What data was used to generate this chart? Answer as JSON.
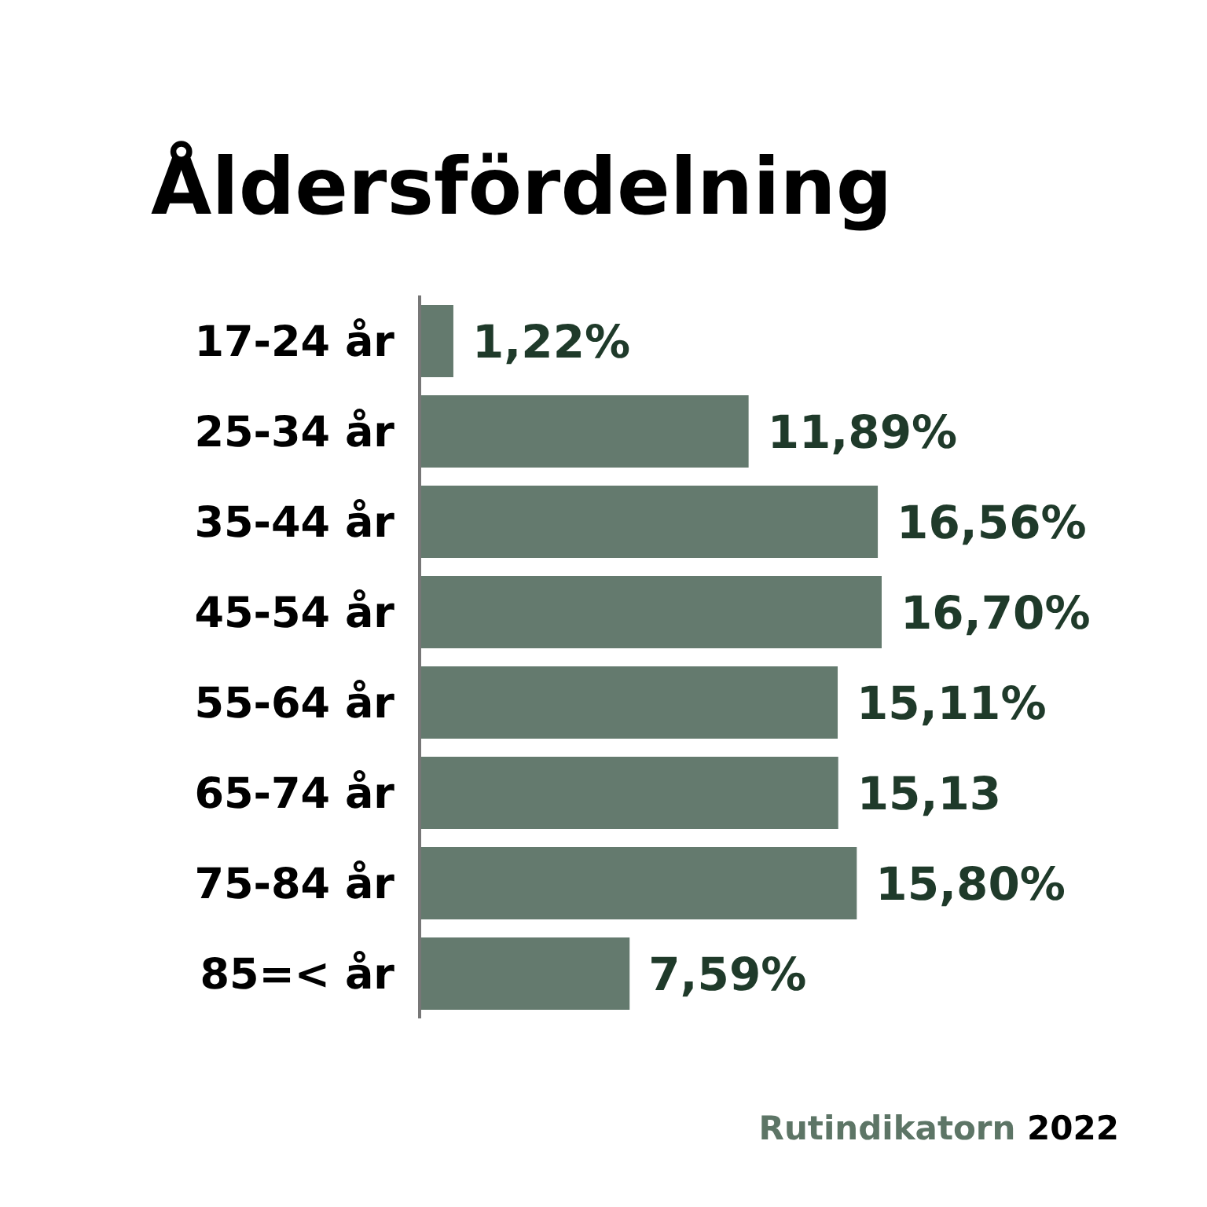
{
  "chart_data": {
    "type": "bar",
    "orientation": "horizontal",
    "title": "Åldersfördelning",
    "categories": [
      "17-24 år",
      "25-34 år",
      "35-44 år",
      "45-54 år",
      "55-64 år",
      "65-74 år",
      "75-84 år",
      "85=< år"
    ],
    "values": [
      1.22,
      11.89,
      16.56,
      16.7,
      15.11,
      15.13,
      15.8,
      7.59
    ],
    "value_labels": [
      "1,22%",
      "11,89%",
      "16,56%",
      "16,70%",
      "15,11%",
      "15,13",
      "15,80%",
      "7,59%"
    ],
    "color": "#647a6e",
    "tick_labels": "y",
    "grid": false,
    "annotations": [
      "Rutindikatorn 2022"
    ]
  }
}
